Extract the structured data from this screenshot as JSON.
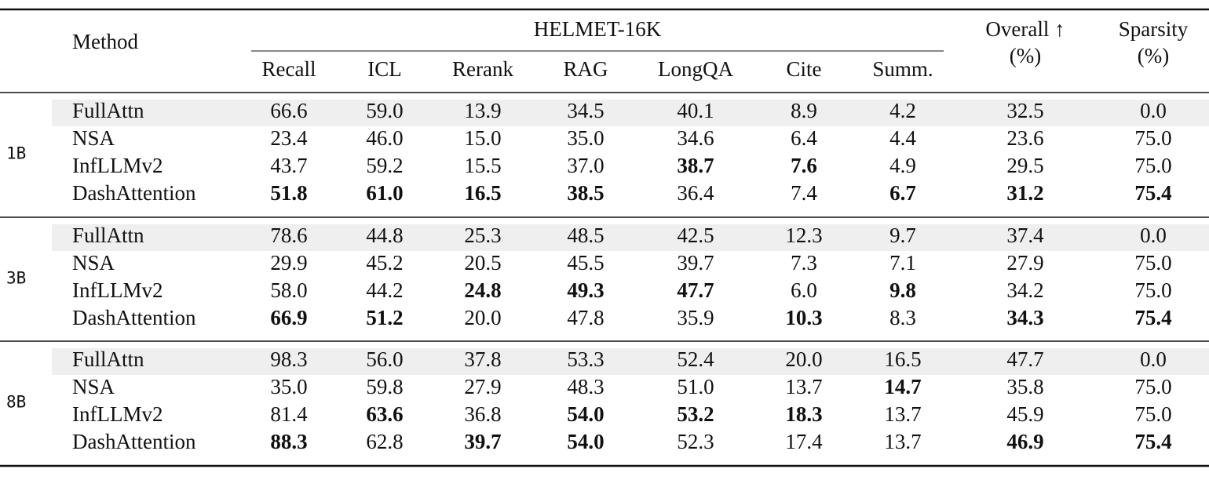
{
  "table": {
    "header": {
      "method": "Method",
      "group": "HELMET-16K",
      "columns": [
        "Recall",
        "ICL",
        "Rerank",
        "RAG",
        "LongQA",
        "Cite",
        "Summ."
      ],
      "overall": [
        "Overall ↑",
        "(%)"
      ],
      "sparsity": [
        "Sparsity",
        "(%)"
      ]
    },
    "groups": [
      {
        "label": "1B",
        "rows": [
          {
            "method": "FullAttn",
            "values": [
              "66.6",
              "59.0",
              "13.9",
              "34.5",
              "40.1",
              "8.9",
              "4.2",
              "32.5",
              "0.0"
            ],
            "bold": []
          },
          {
            "method": "NSA",
            "values": [
              "23.4",
              "46.0",
              "15.0",
              "35.0",
              "34.6",
              "6.4",
              "4.4",
              "23.6",
              "75.0"
            ],
            "bold": []
          },
          {
            "method": "InfLLMv2",
            "values": [
              "43.7",
              "59.2",
              "15.5",
              "37.0",
              "38.7",
              "7.6",
              "4.9",
              "29.5",
              "75.0"
            ],
            "bold": [
              4,
              5
            ]
          },
          {
            "method": "DashAttention",
            "values": [
              "51.8",
              "61.0",
              "16.5",
              "38.5",
              "36.4",
              "7.4",
              "6.7",
              "31.2",
              "75.4"
            ],
            "bold": [
              0,
              1,
              2,
              3,
              6,
              7,
              8
            ]
          }
        ]
      },
      {
        "label": "3B",
        "rows": [
          {
            "method": "FullAttn",
            "values": [
              "78.6",
              "44.8",
              "25.3",
              "48.5",
              "42.5",
              "12.3",
              "9.7",
              "37.4",
              "0.0"
            ],
            "bold": []
          },
          {
            "method": "NSA",
            "values": [
              "29.9",
              "45.2",
              "20.5",
              "45.5",
              "39.7",
              "7.3",
              "7.1",
              "27.9",
              "75.0"
            ],
            "bold": []
          },
          {
            "method": "InfLLMv2",
            "values": [
              "58.0",
              "44.2",
              "24.8",
              "49.3",
              "47.7",
              "6.0",
              "9.8",
              "34.2",
              "75.0"
            ],
            "bold": [
              2,
              3,
              4,
              6
            ]
          },
          {
            "method": "DashAttention",
            "values": [
              "66.9",
              "51.2",
              "20.0",
              "47.8",
              "35.9",
              "10.3",
              "8.3",
              "34.3",
              "75.4"
            ],
            "bold": [
              0,
              1,
              5,
              7,
              8
            ]
          }
        ]
      },
      {
        "label": "8B",
        "rows": [
          {
            "method": "FullAttn",
            "values": [
              "98.3",
              "56.0",
              "37.8",
              "53.3",
              "52.4",
              "20.0",
              "16.5",
              "47.7",
              "0.0"
            ],
            "bold": []
          },
          {
            "method": "NSA",
            "values": [
              "35.0",
              "59.8",
              "27.9",
              "48.3",
              "51.0",
              "13.7",
              "14.7",
              "35.8",
              "75.0"
            ],
            "bold": [
              6
            ]
          },
          {
            "method": "InfLLMv2",
            "values": [
              "81.4",
              "63.6",
              "36.8",
              "54.0",
              "53.2",
              "18.3",
              "13.7",
              "45.9",
              "75.0"
            ],
            "bold": [
              1,
              3,
              4,
              5
            ]
          },
          {
            "method": "DashAttention",
            "values": [
              "88.3",
              "62.8",
              "39.7",
              "54.0",
              "52.3",
              "17.4",
              "13.7",
              "46.9",
              "75.4"
            ],
            "bold": [
              0,
              2,
              3,
              7,
              8
            ]
          }
        ]
      }
    ]
  }
}
